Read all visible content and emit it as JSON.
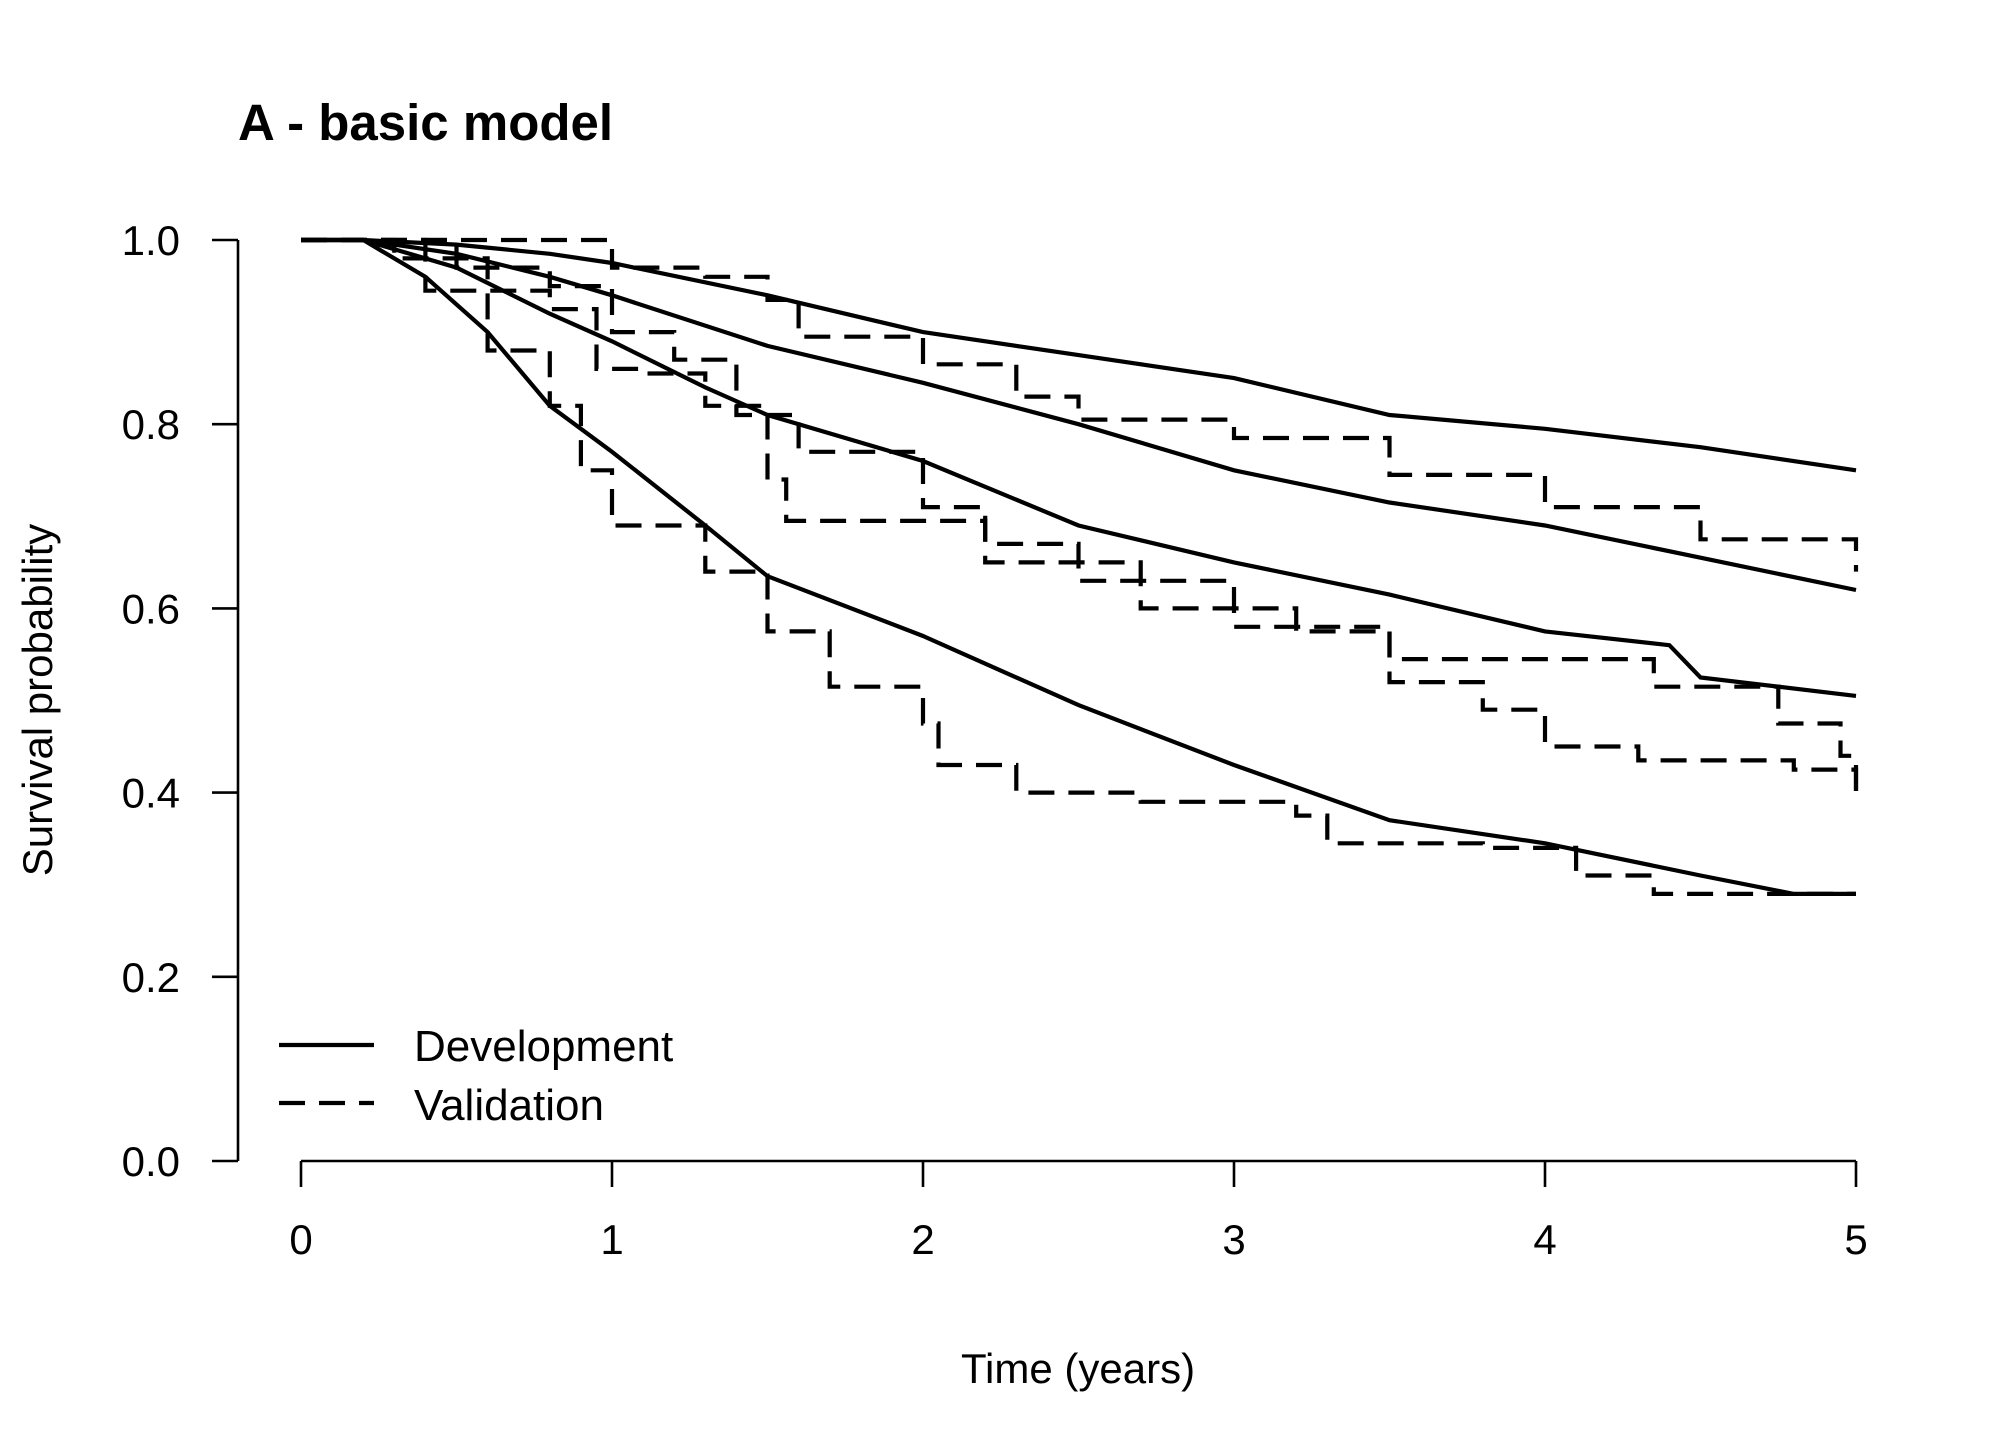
{
  "chart_data": {
    "type": "line",
    "title": "A - basic model",
    "xlabel": "Time (years)",
    "ylabel": "Survival probability",
    "xlim": [
      0,
      5
    ],
    "ylim": [
      0,
      1
    ],
    "xticks": [
      "0",
      "1",
      "2",
      "3",
      "4",
      "5"
    ],
    "yticks": [
      "0.0",
      "0.2",
      "0.4",
      "0.6",
      "0.8",
      "1.0"
    ],
    "grid": false,
    "legend_position": "bottom-left",
    "legend": [
      {
        "label": "Development",
        "style": "solid"
      },
      {
        "label": "Validation",
        "style": "dashed"
      }
    ],
    "series": [
      {
        "group": "Development",
        "style": "solid",
        "x": [
          0,
          0.2,
          0.5,
          0.8,
          1.0,
          1.5,
          2.0,
          2.5,
          3.0,
          3.5,
          4.0,
          4.5,
          5.0
        ],
        "y": [
          1.0,
          1.0,
          0.995,
          0.985,
          0.975,
          0.94,
          0.9,
          0.875,
          0.85,
          0.81,
          0.795,
          0.775,
          0.75
        ]
      },
      {
        "group": "Development",
        "style": "solid",
        "x": [
          0,
          0.2,
          0.5,
          0.8,
          1.0,
          1.5,
          2.0,
          2.5,
          3.0,
          3.5,
          4.0,
          4.5,
          5.0
        ],
        "y": [
          1.0,
          1.0,
          0.985,
          0.96,
          0.94,
          0.885,
          0.845,
          0.8,
          0.75,
          0.715,
          0.69,
          0.655,
          0.62
        ]
      },
      {
        "group": "Development",
        "style": "solid",
        "x": [
          0,
          0.2,
          0.5,
          0.8,
          1.0,
          1.3,
          1.5,
          2.0,
          2.5,
          3.0,
          3.5,
          4.0,
          4.4,
          4.5,
          5.0
        ],
        "y": [
          1.0,
          1.0,
          0.97,
          0.92,
          0.89,
          0.84,
          0.81,
          0.76,
          0.69,
          0.65,
          0.615,
          0.575,
          0.56,
          0.525,
          0.505
        ]
      },
      {
        "group": "Development",
        "style": "solid",
        "x": [
          0,
          0.2,
          0.4,
          0.6,
          0.8,
          1.0,
          1.3,
          1.5,
          2.0,
          2.5,
          3.0,
          3.5,
          4.0,
          4.5,
          4.8,
          5.0
        ],
        "y": [
          1.0,
          1.0,
          0.96,
          0.9,
          0.82,
          0.77,
          0.69,
          0.635,
          0.57,
          0.495,
          0.43,
          0.37,
          0.345,
          0.31,
          0.29,
          0.29
        ]
      },
      {
        "group": "Validation",
        "style": "dashed",
        "x": [
          0,
          0.5,
          1.0,
          1.3,
          1.5,
          1.6,
          2.0,
          2.3,
          2.5,
          3.0,
          3.5,
          4.0,
          4.5,
          5.0
        ],
        "y": [
          1.0,
          1.0,
          0.97,
          0.96,
          0.935,
          0.895,
          0.865,
          0.83,
          0.805,
          0.785,
          0.745,
          0.71,
          0.675,
          0.64
        ]
      },
      {
        "group": "Validation",
        "style": "dashed",
        "x": [
          0,
          0.3,
          0.5,
          0.8,
          1.0,
          1.2,
          1.4,
          1.6,
          2.0,
          2.2,
          2.5,
          3.0,
          3.5,
          3.8,
          4.0,
          4.3,
          4.8,
          5.0
        ],
        "y": [
          1.0,
          1.0,
          0.97,
          0.95,
          0.9,
          0.87,
          0.81,
          0.77,
          0.71,
          0.67,
          0.63,
          0.58,
          0.52,
          0.49,
          0.45,
          0.435,
          0.425,
          0.4
        ]
      },
      {
        "group": "Validation",
        "style": "dashed",
        "x": [
          0,
          0.4,
          0.8,
          0.95,
          1.1,
          1.3,
          1.5,
          1.56,
          2.1,
          2.2,
          2.7,
          3.15,
          3.2,
          3.5,
          4.2,
          4.35,
          4.75,
          4.95,
          5.0
        ],
        "y": [
          1.0,
          0.945,
          0.925,
          0.86,
          0.855,
          0.82,
          0.74,
          0.695,
          0.695,
          0.65,
          0.6,
          0.6,
          0.575,
          0.545,
          0.545,
          0.515,
          0.475,
          0.44,
          0.4
        ]
      },
      {
        "group": "Validation",
        "style": "dashed",
        "x": [
          0,
          0.3,
          0.6,
          0.8,
          0.9,
          1.0,
          1.3,
          1.5,
          1.7,
          2.0,
          2.05,
          2.3,
          2.7,
          3.2,
          3.3,
          3.8,
          4.1,
          4.35,
          4.8,
          5.0
        ],
        "y": [
          1.0,
          0.98,
          0.88,
          0.82,
          0.75,
          0.69,
          0.64,
          0.575,
          0.515,
          0.475,
          0.43,
          0.4,
          0.39,
          0.375,
          0.345,
          0.34,
          0.31,
          0.29,
          0.29,
          0.29
        ]
      }
    ]
  }
}
